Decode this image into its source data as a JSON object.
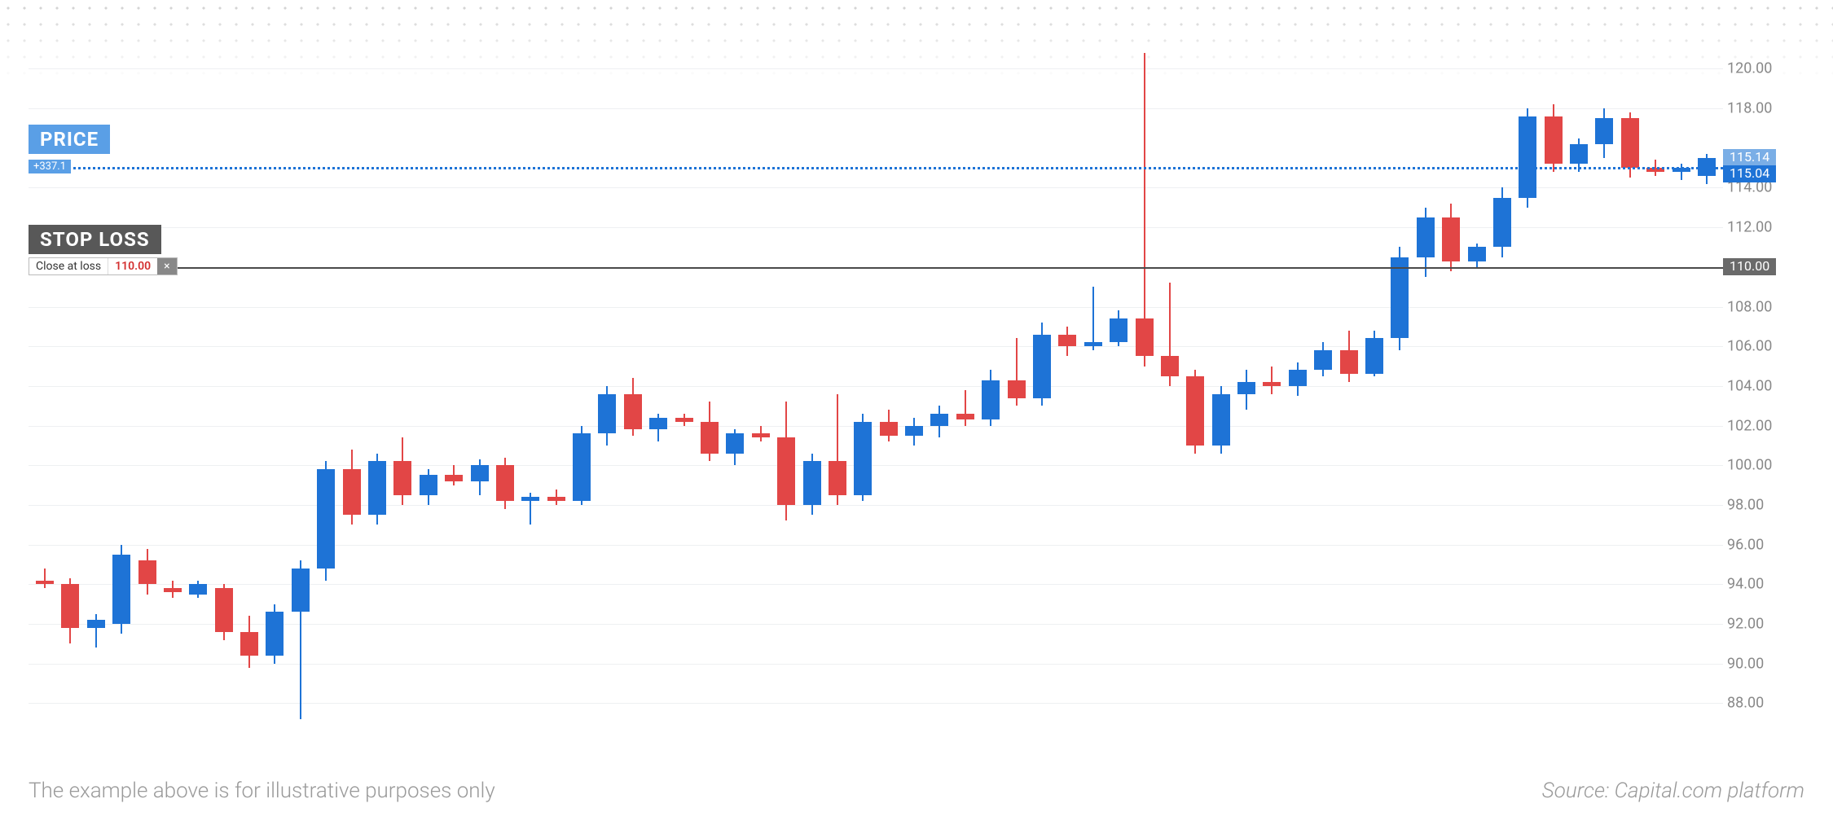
{
  "chart": {
    "type": "candlestick",
    "y_min": 86.5,
    "y_max": 121.0,
    "y_ticks": [
      88,
      90,
      92,
      94,
      96,
      98,
      100,
      102,
      104,
      106,
      108,
      110,
      112,
      114,
      118,
      120
    ],
    "grid_color": "#eef0f2",
    "background_color": "#ffffff",
    "up_color": "#1e73d6",
    "down_color": "#e24646",
    "wick_width": 2,
    "candle_width": 22,
    "label_fontsize": 18,
    "label_color": "#888888",
    "candles": [
      {
        "o": 94.2,
        "h": 94.8,
        "l": 93.8,
        "c": 94.0
      },
      {
        "o": 94.0,
        "h": 94.3,
        "l": 91.0,
        "c": 91.8
      },
      {
        "o": 91.8,
        "h": 92.5,
        "l": 90.8,
        "c": 92.2
      },
      {
        "o": 92.0,
        "h": 96.0,
        "l": 91.5,
        "c": 95.5
      },
      {
        "o": 95.2,
        "h": 95.8,
        "l": 93.5,
        "c": 94.0
      },
      {
        "o": 93.8,
        "h": 94.2,
        "l": 93.3,
        "c": 93.6
      },
      {
        "o": 93.5,
        "h": 94.2,
        "l": 93.3,
        "c": 94.0
      },
      {
        "o": 93.8,
        "h": 94.0,
        "l": 91.2,
        "c": 91.6
      },
      {
        "o": 91.6,
        "h": 92.4,
        "l": 89.8,
        "c": 90.4
      },
      {
        "o": 90.4,
        "h": 93.0,
        "l": 90.0,
        "c": 92.6
      },
      {
        "o": 92.6,
        "h": 95.2,
        "l": 87.2,
        "c": 94.8
      },
      {
        "o": 94.8,
        "h": 100.2,
        "l": 94.2,
        "c": 99.8
      },
      {
        "o": 99.8,
        "h": 100.8,
        "l": 97.0,
        "c": 97.5
      },
      {
        "o": 97.5,
        "h": 100.6,
        "l": 97.0,
        "c": 100.2
      },
      {
        "o": 100.2,
        "h": 101.4,
        "l": 98.0,
        "c": 98.5
      },
      {
        "o": 98.5,
        "h": 99.8,
        "l": 98.0,
        "c": 99.5
      },
      {
        "o": 99.5,
        "h": 100.0,
        "l": 99.0,
        "c": 99.2
      },
      {
        "o": 99.2,
        "h": 100.3,
        "l": 98.5,
        "c": 100.0
      },
      {
        "o": 100.0,
        "h": 100.4,
        "l": 97.8,
        "c": 98.2
      },
      {
        "o": 98.2,
        "h": 98.6,
        "l": 97.0,
        "c": 98.4
      },
      {
        "o": 98.4,
        "h": 98.8,
        "l": 98.0,
        "c": 98.2
      },
      {
        "o": 98.2,
        "h": 102.0,
        "l": 98.0,
        "c": 101.6
      },
      {
        "o": 101.6,
        "h": 104.0,
        "l": 101.0,
        "c": 103.6
      },
      {
        "o": 103.6,
        "h": 104.4,
        "l": 101.5,
        "c": 101.8
      },
      {
        "o": 101.8,
        "h": 102.6,
        "l": 101.2,
        "c": 102.4
      },
      {
        "o": 102.4,
        "h": 102.6,
        "l": 102.0,
        "c": 102.2
      },
      {
        "o": 102.2,
        "h": 103.2,
        "l": 100.2,
        "c": 100.6
      },
      {
        "o": 100.6,
        "h": 101.8,
        "l": 100.0,
        "c": 101.6
      },
      {
        "o": 101.6,
        "h": 102.0,
        "l": 101.2,
        "c": 101.4
      },
      {
        "o": 101.4,
        "h": 103.2,
        "l": 97.2,
        "c": 98.0
      },
      {
        "o": 98.0,
        "h": 100.6,
        "l": 97.5,
        "c": 100.2
      },
      {
        "o": 100.2,
        "h": 103.6,
        "l": 98.0,
        "c": 98.5
      },
      {
        "o": 98.5,
        "h": 102.6,
        "l": 98.2,
        "c": 102.2
      },
      {
        "o": 102.2,
        "h": 102.8,
        "l": 101.2,
        "c": 101.5
      },
      {
        "o": 101.5,
        "h": 102.4,
        "l": 101.0,
        "c": 102.0
      },
      {
        "o": 102.0,
        "h": 103.0,
        "l": 101.4,
        "c": 102.6
      },
      {
        "o": 102.6,
        "h": 103.8,
        "l": 102.0,
        "c": 102.3
      },
      {
        "o": 102.3,
        "h": 104.8,
        "l": 102.0,
        "c": 104.3
      },
      {
        "o": 104.3,
        "h": 106.4,
        "l": 103.0,
        "c": 103.4
      },
      {
        "o": 103.4,
        "h": 107.2,
        "l": 103.0,
        "c": 106.6
      },
      {
        "o": 106.6,
        "h": 107.0,
        "l": 105.5,
        "c": 106.0
      },
      {
        "o": 106.0,
        "h": 109.0,
        "l": 105.8,
        "c": 106.2
      },
      {
        "o": 106.2,
        "h": 107.8,
        "l": 106.0,
        "c": 107.4
      },
      {
        "o": 107.4,
        "h": 120.8,
        "l": 105.0,
        "c": 105.5
      },
      {
        "o": 105.5,
        "h": 109.2,
        "l": 104.0,
        "c": 104.5
      },
      {
        "o": 104.5,
        "h": 104.8,
        "l": 100.6,
        "c": 101.0
      },
      {
        "o": 101.0,
        "h": 104.0,
        "l": 100.6,
        "c": 103.6
      },
      {
        "o": 103.6,
        "h": 104.8,
        "l": 102.8,
        "c": 104.2
      },
      {
        "o": 104.2,
        "h": 105.0,
        "l": 103.6,
        "c": 104.0
      },
      {
        "o": 104.0,
        "h": 105.2,
        "l": 103.5,
        "c": 104.8
      },
      {
        "o": 104.8,
        "h": 106.2,
        "l": 104.5,
        "c": 105.8
      },
      {
        "o": 105.8,
        "h": 106.8,
        "l": 104.2,
        "c": 104.6
      },
      {
        "o": 104.6,
        "h": 106.8,
        "l": 104.5,
        "c": 106.4
      },
      {
        "o": 106.4,
        "h": 111.0,
        "l": 105.8,
        "c": 110.5
      },
      {
        "o": 110.5,
        "h": 113.0,
        "l": 109.5,
        "c": 112.5
      },
      {
        "o": 112.5,
        "h": 113.2,
        "l": 109.8,
        "c": 110.3
      },
      {
        "o": 110.3,
        "h": 111.2,
        "l": 110.0,
        "c": 111.0
      },
      {
        "o": 111.0,
        "h": 114.0,
        "l": 110.5,
        "c": 113.5
      },
      {
        "o": 113.5,
        "h": 118.0,
        "l": 113.0,
        "c": 117.6
      },
      {
        "o": 117.6,
        "h": 118.2,
        "l": 114.8,
        "c": 115.2
      },
      {
        "o": 115.2,
        "h": 116.5,
        "l": 114.8,
        "c": 116.2
      },
      {
        "o": 116.2,
        "h": 118.0,
        "l": 115.5,
        "c": 117.5
      },
      {
        "o": 117.5,
        "h": 117.8,
        "l": 114.5,
        "c": 115.0
      },
      {
        "o": 115.0,
        "h": 115.4,
        "l": 114.6,
        "c": 114.8
      },
      {
        "o": 114.8,
        "h": 115.2,
        "l": 114.4,
        "c": 115.0
      },
      {
        "o": 114.6,
        "h": 115.7,
        "l": 114.2,
        "c": 115.5
      }
    ]
  },
  "price_line": {
    "value": 115.04,
    "upper_value": "115.14",
    "lower_value": "115.04",
    "color": "#1e73d6",
    "badge_text": "+337.1",
    "badge_bg": "#5a9fe6"
  },
  "stop_loss_line": {
    "value": 110.0,
    "color": "#4a4a4a",
    "close_label": "Close at loss",
    "close_value": "110.00",
    "axis_tag": "110.00",
    "axis_tag_bg": "#6a6a6a"
  },
  "labels": {
    "price": {
      "text": "PRICE",
      "bg": "#5a9fe6"
    },
    "stop_loss": {
      "text": "STOP LOSS",
      "bg": "#585858"
    }
  },
  "footer": {
    "left": "The example above is for illustrative purposes only",
    "right": "Source: Capital.com platform"
  }
}
